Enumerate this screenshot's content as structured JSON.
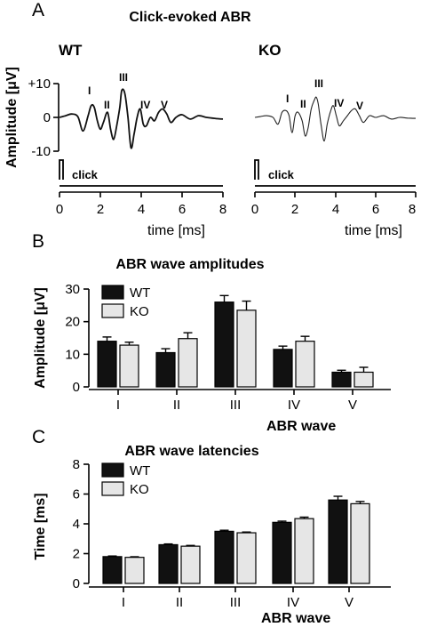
{
  "panels": {
    "a": "A",
    "b": "B",
    "c": "C"
  },
  "panel_a": {
    "title": "Click-evoked ABR",
    "wt_label": "WT",
    "ko_label": "KO",
    "ylabel": "Amplitude [μV]",
    "yticks": [
      "+10",
      "0",
      "-10"
    ],
    "peaks": [
      "I",
      "II",
      "III",
      "IV",
      "V"
    ],
    "stimulus_label": "click",
    "xlabel": "time [ms]",
    "xticks": [
      "0",
      "2",
      "4",
      "6",
      "8"
    ]
  },
  "chart_data": [
    {
      "type": "line",
      "title": "Click-evoked ABR",
      "name": "WT",
      "xlabel": "time [ms]",
      "ylabel": "Amplitude [μV]",
      "xlim": [
        0,
        8
      ],
      "ylim": [
        -10,
        10
      ],
      "series": [
        {
          "name": "WT",
          "x": [
            0.0,
            0.3,
            0.6,
            0.9,
            1.15,
            1.4,
            1.55,
            1.7,
            1.85,
            2.0,
            2.15,
            2.35,
            2.5,
            2.65,
            2.8,
            2.95,
            3.05,
            3.2,
            3.35,
            3.5,
            3.65,
            3.8,
            3.95,
            4.1,
            4.25,
            4.45,
            4.65,
            4.85,
            5.05,
            5.25,
            5.45,
            5.7,
            6.0,
            6.4,
            6.8,
            7.2,
            7.6,
            8.0
          ],
          "y": [
            0,
            0.5,
            1.0,
            0.2,
            -4.0,
            0.5,
            3.5,
            3.0,
            -1.0,
            -3.5,
            -1.5,
            1.5,
            -3.5,
            -6.5,
            -2.5,
            3.0,
            8.0,
            7.0,
            0.0,
            -9.0,
            -5.0,
            0.0,
            2.5,
            -2.0,
            -2.5,
            0.0,
            -1.0,
            1.5,
            2.5,
            1.0,
            -1.5,
            0.0,
            0.8,
            -0.5,
            0.5,
            0.0,
            -0.3,
            -0.5
          ]
        }
      ],
      "peaks": [
        "I",
        "II",
        "III",
        "IV",
        "V"
      ],
      "stimulus": "click"
    },
    {
      "type": "line",
      "title": "Click-evoked ABR",
      "name": "KO",
      "xlabel": "time [ms]",
      "ylabel": "Amplitude [μV]",
      "xlim": [
        0,
        8
      ],
      "ylim": [
        -10,
        10
      ],
      "series": [
        {
          "name": "KO",
          "x": [
            0.0,
            0.3,
            0.6,
            0.9,
            1.15,
            1.35,
            1.55,
            1.7,
            1.85,
            2.0,
            2.15,
            2.35,
            2.5,
            2.65,
            2.8,
            2.95,
            3.05,
            3.15,
            3.3,
            3.45,
            3.6,
            3.75,
            3.9,
            4.05,
            4.2,
            4.4,
            4.6,
            4.8,
            5.0,
            5.2,
            5.4,
            5.7,
            6.0,
            6.4,
            6.8,
            7.2,
            7.6,
            8.0
          ],
          "y": [
            0,
            0.3,
            0.5,
            0.0,
            -2.0,
            1.5,
            2.0,
            0.5,
            -4.5,
            0.5,
            1.5,
            -1.0,
            -5.5,
            -3.0,
            2.5,
            5.0,
            6.0,
            4.0,
            -2.5,
            -7.0,
            -2.0,
            1.5,
            3.5,
            0.5,
            -2.5,
            -1.0,
            0.5,
            2.0,
            2.5,
            0.5,
            -1.5,
            0.5,
            0.0,
            0.5,
            -0.5,
            0.0,
            -0.2,
            -0.3
          ]
        }
      ],
      "peaks": [
        "I",
        "II",
        "III",
        "IV",
        "V"
      ],
      "stimulus": "click"
    },
    {
      "type": "bar",
      "title": "ABR wave amplitudes",
      "xlabel": "ABR wave",
      "ylabel": "Amplitude [μV]",
      "categories": [
        "I",
        "II",
        "III",
        "IV",
        "V"
      ],
      "ylim": [
        0,
        30
      ],
      "yticks": [
        0,
        10,
        20,
        30
      ],
      "legend": "top-left",
      "series": [
        {
          "name": "WT",
          "color": "#111111",
          "values": [
            14.0,
            10.5,
            26.0,
            11.5,
            4.5
          ],
          "errors": [
            1.3,
            1.2,
            2.0,
            1.0,
            0.6
          ]
        },
        {
          "name": "KO",
          "color": "#e6e6e6",
          "values": [
            12.8,
            14.8,
            23.5,
            14.0,
            4.5
          ],
          "errors": [
            0.9,
            1.8,
            2.8,
            1.5,
            1.5
          ]
        }
      ]
    },
    {
      "type": "bar",
      "title": "ABR wave latencies",
      "xlabel": "ABR wave",
      "ylabel": "Time [ms]",
      "categories": [
        "I",
        "II",
        "III",
        "IV",
        "V"
      ],
      "ylim": [
        0,
        8
      ],
      "yticks": [
        0,
        2,
        4,
        6,
        8
      ],
      "legend": "top-left",
      "series": [
        {
          "name": "WT",
          "color": "#111111",
          "values": [
            1.8,
            2.6,
            3.5,
            4.1,
            5.6
          ],
          "errors": [
            0.04,
            0.05,
            0.07,
            0.08,
            0.25
          ]
        },
        {
          "name": "KO",
          "color": "#e6e6e6",
          "values": [
            1.75,
            2.5,
            3.4,
            4.35,
            5.35
          ],
          "errors": [
            0.04,
            0.05,
            0.05,
            0.1,
            0.15
          ]
        }
      ]
    }
  ]
}
